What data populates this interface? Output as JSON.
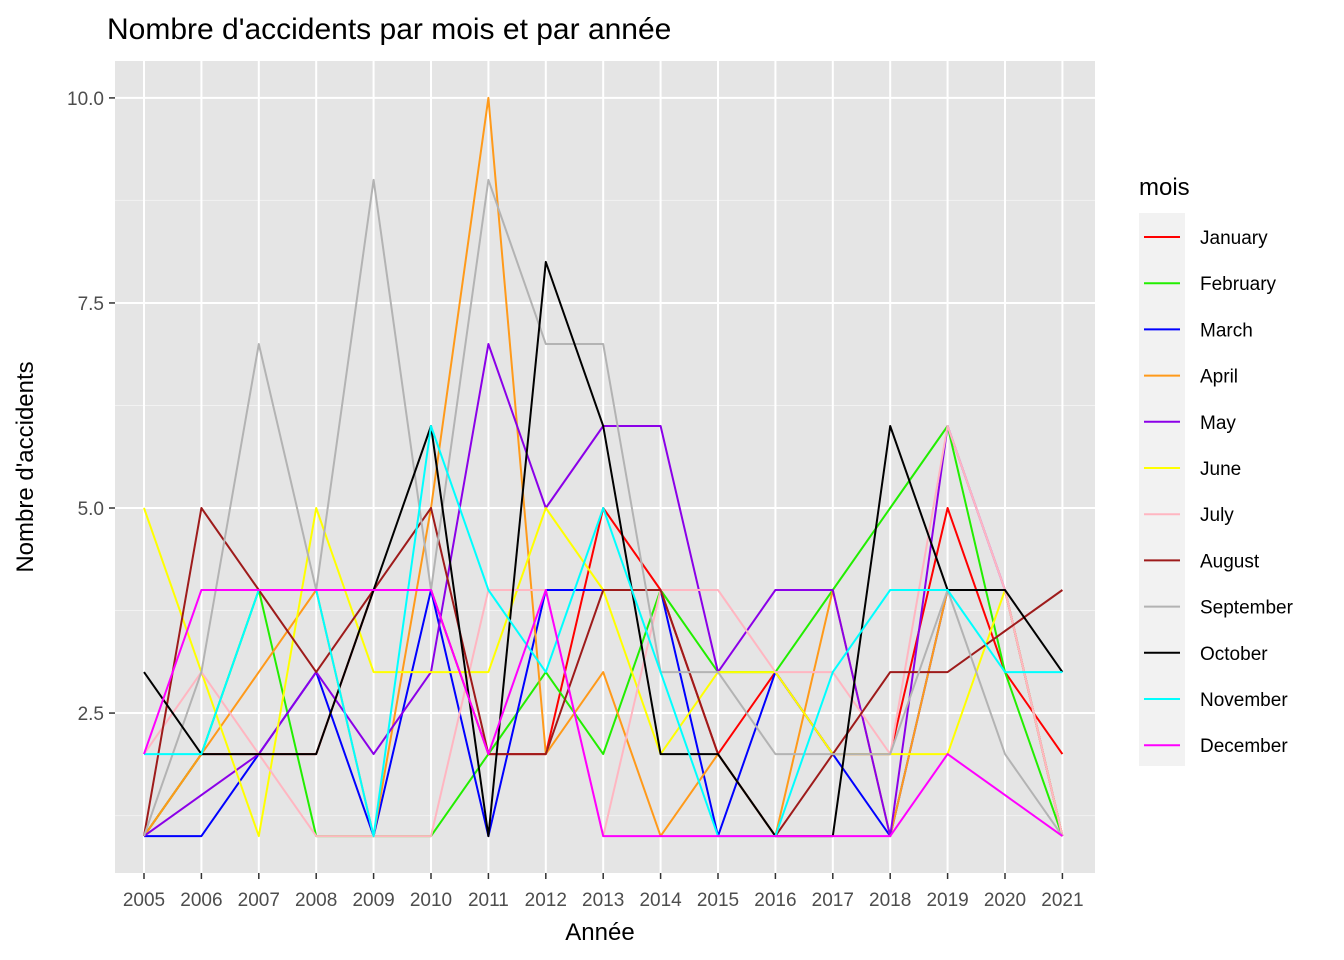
{
  "chart_data": {
    "type": "line",
    "title": "Nombre d'accidents par mois et par année",
    "xlabel": "Année",
    "ylabel": "Nombre d'accidents",
    "x": [
      "2005",
      "2006",
      "2007",
      "2008",
      "2009",
      "2010",
      "2011",
      "2012",
      "2013",
      "2014",
      "2015",
      "2016",
      "2017",
      "2018",
      "2019",
      "2020",
      "2021"
    ],
    "y_ticks": [
      "2.5",
      "5.0",
      "7.5",
      "10.0"
    ],
    "ylim": [
      0.55,
      10.45
    ],
    "grid": true,
    "legend_title": "mois",
    "legend_position": "right",
    "series": [
      {
        "name": "January",
        "color": "#ff0000",
        "values": [
          1,
          2,
          2,
          2,
          4,
          4,
          2,
          2,
          5,
          4,
          2,
          3,
          2,
          2,
          5,
          3,
          2
        ]
      },
      {
        "name": "February",
        "color": "#22ee00",
        "values": [
          1,
          2,
          4,
          1,
          1,
          1,
          2,
          3,
          2,
          4,
          3,
          3,
          4,
          5,
          6,
          3,
          1
        ]
      },
      {
        "name": "March",
        "color": "#0000ff",
        "values": [
          1,
          1,
          2,
          3,
          1,
          4,
          1,
          4,
          4,
          4,
          1,
          3,
          2,
          1,
          4,
          4,
          1
        ]
      },
      {
        "name": "April",
        "color": "#ff9a1a",
        "values": [
          1,
          2,
          3,
          4,
          1,
          5,
          10,
          2,
          3,
          1,
          2,
          1,
          4,
          1,
          4,
          4,
          1
        ]
      },
      {
        "name": "May",
        "color": "#8b00e8",
        "values": [
          1,
          1.5,
          2,
          3,
          2,
          3,
          7,
          5,
          6,
          6,
          3,
          4,
          4,
          1,
          6,
          4,
          1
        ]
      },
      {
        "name": "June",
        "color": "#ffff00",
        "values": [
          5,
          3,
          1,
          5,
          3,
          3,
          3,
          5,
          4,
          2,
          3,
          3,
          2,
          2,
          2,
          4,
          1
        ]
      },
      {
        "name": "July",
        "color": "#ffb6c1",
        "values": [
          2,
          3,
          2,
          1,
          1,
          1,
          4,
          4,
          1,
          4,
          4,
          3,
          3,
          2,
          6,
          4,
          1
        ]
      },
      {
        "name": "August",
        "color": "#9e1b1b",
        "values": [
          1,
          5,
          4,
          3,
          4,
          5,
          2,
          2,
          4,
          4,
          2,
          1,
          2,
          3,
          3,
          3.5,
          4
        ]
      },
      {
        "name": "September",
        "color": "#b3b3b3",
        "values": [
          1,
          3,
          7,
          4,
          9,
          4,
          9,
          7,
          7,
          3,
          3,
          2,
          2,
          2,
          4,
          2,
          1
        ]
      },
      {
        "name": "October",
        "color": "#000000",
        "values": [
          3,
          2,
          2,
          2,
          4,
          6,
          1,
          8,
          6,
          2,
          2,
          1,
          1,
          6,
          4,
          4,
          3
        ]
      },
      {
        "name": "November",
        "color": "#00ffff",
        "values": [
          2,
          2,
          4,
          4,
          1,
          6,
          4,
          3,
          5,
          3,
          1,
          1,
          3,
          4,
          4,
          3,
          3
        ]
      },
      {
        "name": "December",
        "color": "#ff00ff",
        "values": [
          2,
          4,
          4,
          4,
          4,
          4,
          2,
          4,
          1,
          1,
          1,
          1,
          1,
          1,
          2,
          1.5,
          1
        ]
      }
    ]
  }
}
